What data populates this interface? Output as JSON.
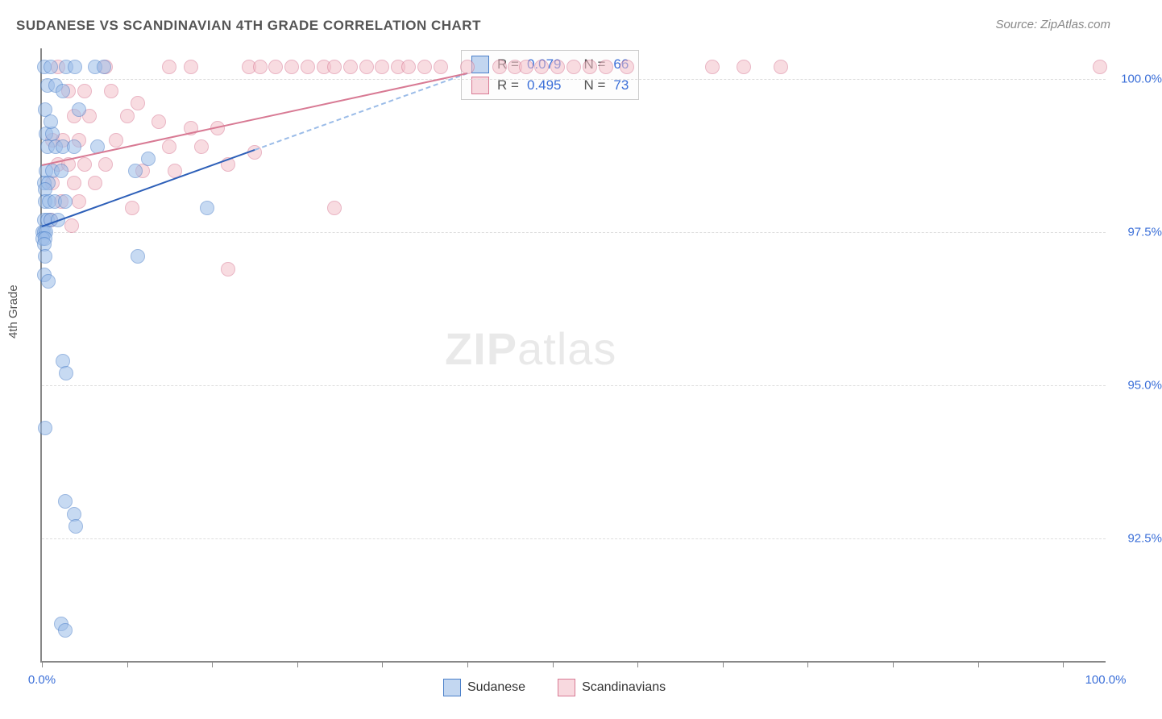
{
  "title": "SUDANESE VS SCANDINAVIAN 4TH GRADE CORRELATION CHART",
  "source": "Source: ZipAtlas.com",
  "ylabel": "4th Grade",
  "watermark_bold": "ZIP",
  "watermark_light": "atlas",
  "chart": {
    "type": "scatter",
    "xlim": [
      0,
      100
    ],
    "ylim": [
      90.5,
      100.5
    ],
    "ytick_vals": [
      92.5,
      95.0,
      97.5,
      100.0
    ],
    "ytick_labels": [
      "92.5%",
      "95.0%",
      "97.5%",
      "100.0%"
    ],
    "xtick_vals": [
      0,
      8,
      16,
      24,
      32,
      40,
      48,
      56,
      64,
      72,
      80,
      88,
      96
    ],
    "xlabel_min": "0.0%",
    "xlabel_max": "100.0%",
    "background_color": "#ffffff",
    "grid_color": "#dddddd",
    "marker_size": 18,
    "marker_opacity": 0.55
  },
  "series": {
    "a": {
      "name": "Sudanese",
      "color_fill": "#9bbce8",
      "color_stroke": "#4a7fc9",
      "R": "0.079",
      "N": "66",
      "trend": {
        "x1": 0,
        "y1": 97.6,
        "x2": 20,
        "y2": 98.85,
        "ext_x2": 40,
        "ext_y2": 100.1
      },
      "points": [
        [
          0.2,
          100.2
        ],
        [
          0.8,
          100.2
        ],
        [
          2.3,
          100.2
        ],
        [
          3.1,
          100.2
        ],
        [
          5.0,
          100.2
        ],
        [
          5.8,
          100.2
        ],
        [
          0.5,
          99.9
        ],
        [
          1.3,
          99.9
        ],
        [
          2.0,
          99.8
        ],
        [
          0.3,
          99.5
        ],
        [
          3.5,
          99.5
        ],
        [
          0.4,
          99.1
        ],
        [
          1.0,
          99.1
        ],
        [
          0.8,
          99.3
        ],
        [
          0.5,
          98.9
        ],
        [
          1.3,
          98.9
        ],
        [
          2.0,
          98.9
        ],
        [
          3.0,
          98.9
        ],
        [
          5.2,
          98.9
        ],
        [
          10.0,
          98.7
        ],
        [
          0.4,
          98.5
        ],
        [
          1.0,
          98.5
        ],
        [
          1.8,
          98.5
        ],
        [
          8.8,
          98.5
        ],
        [
          0.2,
          98.3
        ],
        [
          0.6,
          98.3
        ],
        [
          0.3,
          98.2
        ],
        [
          0.3,
          98.0
        ],
        [
          0.7,
          98.0
        ],
        [
          1.2,
          98.0
        ],
        [
          2.2,
          98.0
        ],
        [
          15.5,
          97.9
        ],
        [
          0.2,
          97.7
        ],
        [
          0.5,
          97.7
        ],
        [
          0.8,
          97.7
        ],
        [
          1.5,
          97.7
        ],
        [
          0.1,
          97.5
        ],
        [
          0.2,
          97.5
        ],
        [
          0.4,
          97.5
        ],
        [
          0.1,
          97.4
        ],
        [
          0.3,
          97.4
        ],
        [
          0.2,
          97.3
        ],
        [
          0.3,
          97.1
        ],
        [
          9.0,
          97.1
        ],
        [
          0.2,
          96.8
        ],
        [
          0.6,
          96.7
        ],
        [
          2.0,
          95.4
        ],
        [
          2.3,
          95.2
        ],
        [
          0.3,
          94.3
        ],
        [
          2.2,
          93.1
        ],
        [
          3.0,
          92.9
        ],
        [
          3.2,
          92.7
        ],
        [
          1.8,
          91.1
        ],
        [
          2.2,
          91.0
        ]
      ]
    },
    "b": {
      "name": "Scandinavians",
      "color_fill": "#f4c0ca",
      "color_stroke": "#d87a94",
      "R": "0.495",
      "N": "73",
      "trend": {
        "x1": 0,
        "y1": 98.6,
        "x2": 40,
        "y2": 100.1
      },
      "points": [
        [
          1.5,
          100.2
        ],
        [
          6.0,
          100.2
        ],
        [
          12.0,
          100.2
        ],
        [
          14.0,
          100.2
        ],
        [
          19.5,
          100.2
        ],
        [
          20.5,
          100.2
        ],
        [
          22.0,
          100.2
        ],
        [
          23.5,
          100.2
        ],
        [
          25.0,
          100.2
        ],
        [
          26.5,
          100.2
        ],
        [
          27.5,
          100.2
        ],
        [
          29.0,
          100.2
        ],
        [
          30.5,
          100.2
        ],
        [
          32.0,
          100.2
        ],
        [
          33.5,
          100.2
        ],
        [
          34.5,
          100.2
        ],
        [
          36.0,
          100.2
        ],
        [
          37.5,
          100.2
        ],
        [
          40.0,
          100.2
        ],
        [
          43.0,
          100.2
        ],
        [
          44.5,
          100.2
        ],
        [
          45.5,
          100.2
        ],
        [
          47.0,
          100.2
        ],
        [
          48.5,
          100.2
        ],
        [
          50.0,
          100.2
        ],
        [
          51.5,
          100.2
        ],
        [
          53.0,
          100.2
        ],
        [
          55.0,
          100.2
        ],
        [
          63.0,
          100.2
        ],
        [
          66.0,
          100.2
        ],
        [
          69.5,
          100.2
        ],
        [
          99.5,
          100.2
        ],
        [
          2.5,
          99.8
        ],
        [
          4.0,
          99.8
        ],
        [
          6.5,
          99.8
        ],
        [
          9.0,
          99.6
        ],
        [
          3.0,
          99.4
        ],
        [
          4.5,
          99.4
        ],
        [
          8.0,
          99.4
        ],
        [
          11.0,
          99.3
        ],
        [
          14.0,
          99.2
        ],
        [
          16.5,
          99.2
        ],
        [
          1.0,
          99.0
        ],
        [
          2.0,
          99.0
        ],
        [
          3.5,
          99.0
        ],
        [
          7.0,
          99.0
        ],
        [
          12.0,
          98.9
        ],
        [
          15.0,
          98.9
        ],
        [
          20.0,
          98.8
        ],
        [
          1.5,
          98.6
        ],
        [
          2.5,
          98.6
        ],
        [
          4.0,
          98.6
        ],
        [
          6.0,
          98.6
        ],
        [
          9.5,
          98.5
        ],
        [
          12.5,
          98.5
        ],
        [
          17.5,
          98.6
        ],
        [
          1.0,
          98.3
        ],
        [
          3.0,
          98.3
        ],
        [
          5.0,
          98.3
        ],
        [
          1.8,
          98.0
        ],
        [
          3.5,
          98.0
        ],
        [
          8.5,
          97.9
        ],
        [
          27.5,
          97.9
        ],
        [
          0.8,
          97.7
        ],
        [
          2.8,
          97.6
        ],
        [
          17.5,
          96.9
        ]
      ]
    }
  },
  "stats_labels": {
    "R": "R =",
    "N": "N ="
  },
  "legend_bottom": {
    "a": "Sudanese",
    "b": "Scandinavians"
  }
}
